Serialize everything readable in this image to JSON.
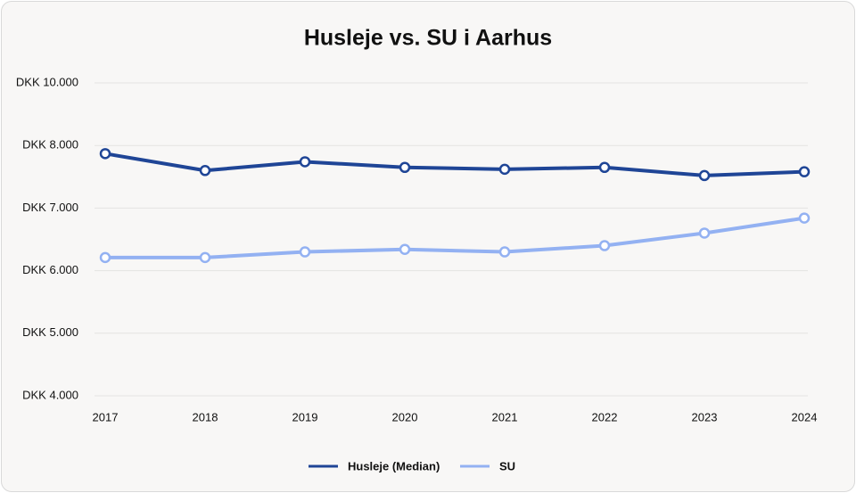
{
  "chart_data": {
    "type": "line",
    "title": "Husleje vs. SU i Aarhus",
    "categories": [
      "2017",
      "2018",
      "2019",
      "2020",
      "2021",
      "2022",
      "2023",
      "2024"
    ],
    "series": [
      {
        "name": "Husleje (Median)",
        "color": "#1f4596",
        "values": [
          7870,
          7600,
          7740,
          7650,
          7620,
          7650,
          7520,
          7580
        ]
      },
      {
        "name": "SU",
        "color": "#93b1f2",
        "values": [
          6210,
          6210,
          6300,
          6340,
          6300,
          6400,
          6600,
          6840
        ]
      }
    ],
    "ylim": [
      4000,
      10000
    ],
    "yticks": [
      {
        "value": 4000,
        "label": "DKK 4.000"
      },
      {
        "value": 5000,
        "label": "DKK 5.000"
      },
      {
        "value": 6000,
        "label": "DKK 6.000"
      },
      {
        "value": 7000,
        "label": "DKK 7.000"
      },
      {
        "value": 8000,
        "label": "DKK 8.000"
      },
      {
        "value": 10000,
        "label": "DKK 10.000"
      }
    ],
    "grid": true,
    "legend": "bottom"
  }
}
